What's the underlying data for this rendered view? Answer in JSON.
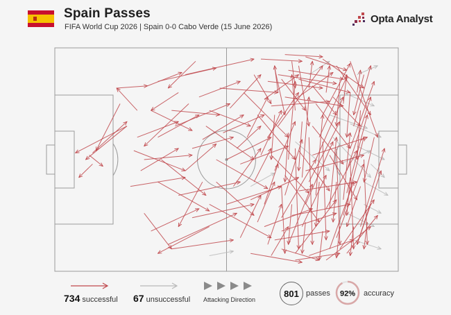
{
  "header": {
    "title": "Spain Passes",
    "subtitle": "FIFA World Cup 2026 | Spain 0-0 Cabo Verde (15 June 2026)",
    "brand": "Opta Analyst",
    "flag_colors": {
      "red": "#c8102e",
      "yellow": "#f6c100"
    }
  },
  "colors": {
    "successful": "#c0484c",
    "unsuccessful": "#b9b9b9",
    "pitch_line": "#9a9a9a",
    "accuracy_ring": "#d9a8a8"
  },
  "legend": {
    "successful_count": "734",
    "successful_label": "successful",
    "unsuccessful_count": "67",
    "unsuccessful_label": "unsuccessful",
    "direction_label": "Attacking Direction",
    "passes_value": "801",
    "passes_label": "passes",
    "accuracy_value": "92%",
    "accuracy_label": "accuracy",
    "accuracy_fraction": 0.92
  },
  "chart_data": {
    "type": "pass-map",
    "attacking_direction": "left-to-right",
    "pitch_units": {
      "length": 100,
      "width": 100
    },
    "totals": {
      "passes": 801,
      "successful": 734,
      "unsuccessful": 67,
      "accuracy_pct": 92
    },
    "successful_passes": [
      [
        21,
        35,
        6,
        47
      ],
      [
        21,
        35,
        9,
        50
      ],
      [
        11,
        47,
        21,
        33
      ],
      [
        10,
        48,
        14,
        53
      ],
      [
        19,
        25,
        12,
        46
      ],
      [
        11,
        52,
        7,
        58
      ],
      [
        24,
        28,
        18,
        18
      ],
      [
        18,
        18,
        27,
        17
      ],
      [
        27,
        17,
        37,
        11
      ],
      [
        41,
        6,
        33,
        18
      ],
      [
        30,
        15,
        47,
        9
      ],
      [
        38,
        12,
        58,
        5
      ],
      [
        36,
        20,
        28,
        28
      ],
      [
        28,
        28,
        40,
        37
      ],
      [
        35,
        35,
        51,
        25
      ],
      [
        39,
        25,
        26,
        44
      ],
      [
        23,
        46,
        38,
        55
      ],
      [
        38,
        55,
        47,
        43
      ],
      [
        22,
        62,
        38,
        58
      ],
      [
        30,
        60,
        45,
        73
      ],
      [
        26,
        74,
        34,
        90
      ],
      [
        33,
        88,
        53,
        74
      ],
      [
        45,
        80,
        30,
        92
      ],
      [
        34,
        90,
        52,
        86
      ],
      [
        43,
        60,
        36,
        80
      ],
      [
        45,
        70,
        63,
        85
      ],
      [
        54,
        85,
        60,
        66
      ],
      [
        47,
        50,
        62,
        63
      ],
      [
        43,
        41,
        55,
        30
      ],
      [
        51,
        27,
        60,
        12
      ],
      [
        58,
        12,
        63,
        25
      ],
      [
        61,
        23,
        71,
        12
      ],
      [
        66,
        14,
        73,
        28
      ],
      [
        70,
        23,
        81,
        11
      ],
      [
        75,
        17,
        82,
        30
      ],
      [
        62,
        40,
        71,
        20
      ],
      [
        65,
        35,
        78,
        8
      ],
      [
        64,
        55,
        70,
        33
      ],
      [
        67,
        66,
        72,
        41
      ],
      [
        66,
        76,
        76,
        50
      ],
      [
        68,
        88,
        75,
        61
      ],
      [
        70,
        92,
        82,
        68
      ],
      [
        72,
        80,
        79,
        57
      ],
      [
        73,
        70,
        81,
        42
      ],
      [
        74,
        60,
        83,
        33
      ],
      [
        76,
        50,
        84,
        22
      ],
      [
        77,
        40,
        85,
        13
      ],
      [
        78,
        30,
        86,
        7
      ],
      [
        79,
        72,
        88,
        46
      ],
      [
        80,
        90,
        87,
        60
      ],
      [
        82,
        85,
        90,
        52
      ],
      [
        84,
        75,
        90,
        40
      ],
      [
        85,
        65,
        91,
        30
      ],
      [
        85,
        55,
        92,
        22
      ],
      [
        86,
        45,
        93,
        15
      ],
      [
        87,
        35,
        92,
        8
      ],
      [
        83,
        90,
        93,
        68
      ],
      [
        88,
        88,
        95,
        55
      ],
      [
        89,
        80,
        96,
        45
      ],
      [
        89,
        28,
        88,
        50
      ],
      [
        86,
        20,
        85,
        40
      ],
      [
        83,
        15,
        82,
        35
      ],
      [
        90,
        12,
        87,
        30
      ],
      [
        89,
        62,
        85,
        80
      ],
      [
        92,
        70,
        88,
        88
      ],
      [
        93,
        40,
        90,
        60
      ],
      [
        62,
        88,
        66,
        70
      ],
      [
        63,
        93,
        68,
        80
      ],
      [
        64,
        9,
        67,
        30
      ],
      [
        69,
        6,
        70,
        18
      ],
      [
        71,
        8,
        74,
        35
      ],
      [
        60,
        48,
        66,
        28
      ],
      [
        58,
        60,
        63,
        45
      ],
      [
        61,
        70,
        65,
        52
      ],
      [
        59,
        78,
        64,
        60
      ],
      [
        56,
        40,
        62,
        22
      ],
      [
        52,
        62,
        60,
        45
      ],
      [
        53,
        45,
        60,
        35
      ],
      [
        66,
        90,
        77,
        95
      ],
      [
        70,
        95,
        83,
        92
      ],
      [
        74,
        93,
        87,
        86
      ],
      [
        79,
        95,
        92,
        80
      ],
      [
        85,
        92,
        94,
        75
      ],
      [
        57,
        92,
        72,
        96
      ],
      [
        73,
        4,
        85,
        10
      ],
      [
        78,
        5,
        90,
        18
      ],
      [
        82,
        8,
        92,
        30
      ],
      [
        86,
        6,
        94,
        40
      ],
      [
        67,
        3,
        78,
        4
      ],
      [
        60,
        5,
        72,
        6
      ],
      [
        30,
        40,
        42,
        30
      ],
      [
        31,
        50,
        44,
        66
      ],
      [
        25,
        55,
        36,
        45
      ],
      [
        40,
        45,
        52,
        40
      ],
      [
        44,
        35,
        58,
        50
      ],
      [
        50,
        50,
        63,
        40
      ],
      [
        47,
        60,
        58,
        75
      ],
      [
        42,
        22,
        54,
        15
      ],
      [
        48,
        18,
        65,
        20
      ],
      [
        55,
        20,
        68,
        40
      ],
      [
        59,
        30,
        70,
        50
      ],
      [
        63,
        48,
        74,
        65
      ],
      [
        67,
        57,
        77,
        78
      ],
      [
        71,
        46,
        80,
        64
      ],
      [
        75,
        35,
        84,
        52
      ],
      [
        76,
        25,
        86,
        45
      ],
      [
        81,
        22,
        89,
        35
      ],
      [
        80,
        48,
        88,
        68
      ],
      [
        64,
        30,
        63,
        50
      ],
      [
        68,
        38,
        67,
        60
      ],
      [
        72,
        33,
        71,
        55
      ],
      [
        77,
        60,
        76,
        80
      ],
      [
        82,
        60,
        81,
        78
      ],
      [
        86,
        58,
        85,
        75
      ],
      [
        69,
        70,
        68,
        88
      ],
      [
        73,
        78,
        72,
        92
      ],
      [
        78,
        82,
        77,
        95
      ],
      [
        83,
        80,
        82,
        94
      ],
      [
        87,
        80,
        86,
        93
      ],
      [
        91,
        78,
        90,
        90
      ],
      [
        65,
        20,
        64,
        8
      ],
      [
        70,
        28,
        69,
        12
      ],
      [
        74,
        18,
        75,
        6
      ],
      [
        79,
        20,
        80,
        8
      ],
      [
        84,
        25,
        85,
        12
      ],
      [
        88,
        20,
        89,
        10
      ],
      [
        68,
        50,
        70,
        15
      ],
      [
        72,
        58,
        74,
        22
      ],
      [
        76,
        66,
        78,
        30
      ],
      [
        80,
        72,
        82,
        40
      ],
      [
        84,
        68,
        86,
        38
      ],
      [
        66,
        62,
        67,
        92
      ],
      [
        70,
        45,
        71,
        90
      ],
      [
        74,
        40,
        75,
        88
      ],
      [
        78,
        42,
        79,
        86
      ],
      [
        82,
        45,
        83,
        88
      ],
      [
        86,
        50,
        87,
        90
      ],
      [
        90,
        50,
        91,
        88
      ],
      [
        36,
        66,
        54,
        60
      ],
      [
        40,
        76,
        58,
        70
      ],
      [
        50,
        70,
        66,
        62
      ],
      [
        54,
        52,
        68,
        44
      ],
      [
        57,
        68,
        71,
        58
      ],
      [
        61,
        80,
        75,
        72
      ],
      [
        28,
        82,
        42,
        72
      ],
      [
        26,
        50,
        40,
        48
      ],
      [
        24,
        40,
        36,
        33
      ],
      [
        34,
        28,
        48,
        30
      ],
      [
        45,
        28,
        57,
        35
      ],
      [
        49,
        38,
        61,
        30
      ],
      [
        64,
        86,
        80,
        82
      ],
      [
        66,
        82,
        82,
        74
      ],
      [
        69,
        75,
        86,
        70
      ],
      [
        71,
        64,
        88,
        60
      ],
      [
        73,
        55,
        90,
        48
      ],
      [
        75,
        48,
        91,
        40
      ],
      [
        62,
        15,
        78,
        18
      ],
      [
        65,
        12,
        82,
        16
      ],
      [
        68,
        10,
        84,
        14
      ],
      [
        71,
        14,
        86,
        20
      ],
      [
        63,
        26,
        80,
        24
      ],
      [
        67,
        22,
        84,
        26
      ]
    ],
    "unsuccessful_passes": [
      [
        84,
        20,
        93,
        26
      ],
      [
        86,
        34,
        95,
        40
      ],
      [
        88,
        44,
        96,
        50
      ],
      [
        83,
        52,
        92,
        46
      ],
      [
        90,
        60,
        97,
        66
      ],
      [
        85,
        74,
        93,
        80
      ],
      [
        87,
        86,
        95,
        90
      ],
      [
        88,
        12,
        94,
        8
      ],
      [
        80,
        30,
        91,
        36
      ],
      [
        81,
        40,
        92,
        58
      ],
      [
        70,
        42,
        80,
        55
      ],
      [
        45,
        93,
        52,
        91
      ],
      [
        57,
        62,
        64,
        56
      ],
      [
        74,
        12,
        80,
        6
      ],
      [
        90,
        70,
        95,
        74
      ],
      [
        92,
        52,
        96,
        58
      ]
    ]
  }
}
